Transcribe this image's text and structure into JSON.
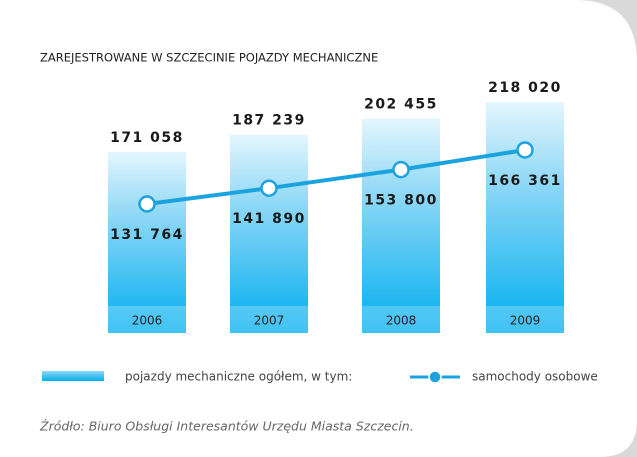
{
  "chart_data": {
    "type": "bar",
    "title": "ZAREJESTROWANE W SZCZECINIE POJAZDY MECHANICZNE",
    "categories": [
      "2006",
      "2007",
      "2008",
      "2009"
    ],
    "series": [
      {
        "name": "pojazdy mechaniczne ogółem, w tym:",
        "color": "#00aeef",
        "values": [
          171058,
          187239,
          202455,
          218020
        ],
        "value_labels": [
          "171 058",
          "187 239",
          "202 455",
          "218 020"
        ]
      },
      {
        "name": "samochody osobowe",
        "type": "line",
        "axis": "y2",
        "color": "#1ba3e0",
        "values": [
          131764,
          141890,
          153800,
          166361
        ],
        "value_labels": [
          "131 764",
          "141 890",
          "153 800",
          "166 361"
        ]
      }
    ]
  },
  "source": "Źródło: Biuro Obsługi Interesantów Urzędu Miasta Szczecin."
}
